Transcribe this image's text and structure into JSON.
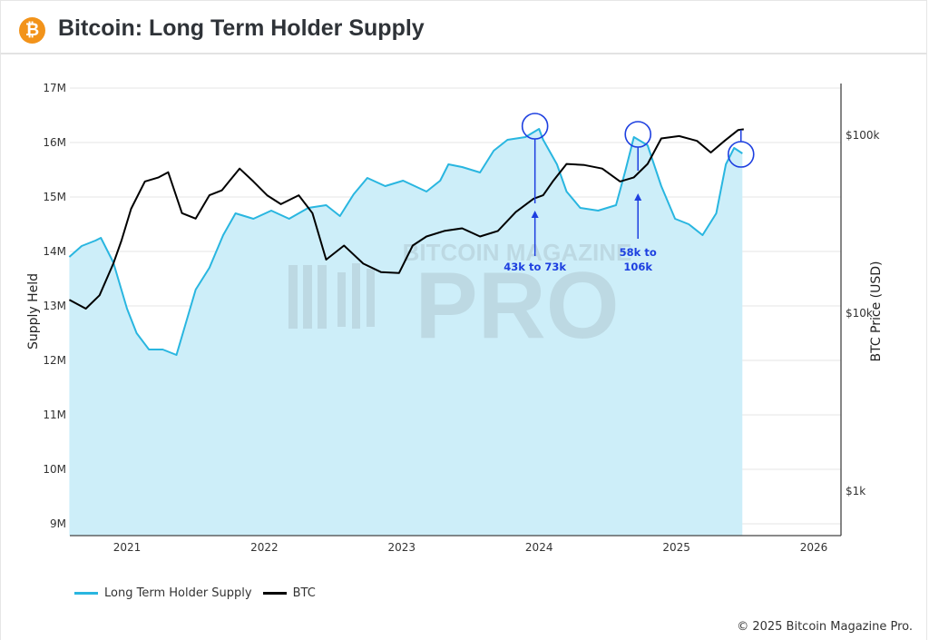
{
  "header": {
    "title": "Bitcoin: Long Term Holder Supply",
    "logo_icon": "bitcoin-icon",
    "logo_glyph": "₿"
  },
  "watermark": {
    "top": "BITCOIN MAGAZINE",
    "main": "PRO"
  },
  "legend": {
    "items": [
      {
        "label": "Long Term Holder Supply",
        "color": "#29b6e0"
      },
      {
        "label": "BTC",
        "color": "#000000"
      }
    ]
  },
  "footer": {
    "copyright": "© 2025 Bitcoin Magazine Pro."
  },
  "chart_data": {
    "type": "line",
    "title": "Bitcoin: Long Term Holder Supply",
    "ylabel": "Supply Held",
    "y2label": "BTC Price (USD)",
    "xlabel": "",
    "x_ticks": [
      "2021",
      "2022",
      "2023",
      "2024",
      "2025",
      "2026"
    ],
    "y_ticks": [
      "9M",
      "10M",
      "11M",
      "12M",
      "13M",
      "14M",
      "15M",
      "16M",
      "17M"
    ],
    "y2_ticks": [
      "$1k",
      "$10k",
      "$100k"
    ],
    "ylim": [
      8.8,
      17
    ],
    "y2_scale": "log",
    "y2lim": [
      400,
      160000
    ],
    "xlim": [
      2020.58,
      2026.2
    ],
    "grid": true,
    "legend_position": "bottom-left",
    "series": [
      {
        "name": "Long Term Holder Supply",
        "axis": "left",
        "color": "#29b6e0",
        "fill": "#cdeef9",
        "x": [
          2020.58,
          2020.67,
          2020.77,
          2020.81,
          2020.9,
          2021.0,
          2021.07,
          2021.16,
          2021.26,
          2021.36,
          2021.43,
          2021.5,
          2021.6,
          2021.7,
          2021.79,
          2021.92,
          2022.05,
          2022.18,
          2022.32,
          2022.45,
          2022.55,
          2022.65,
          2022.75,
          2022.88,
          2023.01,
          2023.18,
          2023.28,
          2023.34,
          2023.44,
          2023.57,
          2023.67,
          2023.77,
          2023.9,
          2024.0,
          2024.03,
          2024.13,
          2024.2,
          2024.3,
          2024.43,
          2024.56,
          2024.63,
          2024.69,
          2024.79,
          2024.89,
          2024.99,
          2025.09,
          2025.19,
          2025.29,
          2025.36,
          2025.42,
          2025.48
        ],
        "values": [
          13.9,
          14.1,
          14.2,
          14.25,
          13.8,
          12.95,
          12.5,
          12.2,
          12.2,
          12.1,
          12.7,
          13.3,
          13.7,
          14.3,
          14.7,
          14.6,
          14.75,
          14.6,
          14.8,
          14.85,
          14.65,
          15.05,
          15.35,
          15.2,
          15.3,
          15.1,
          15.3,
          15.6,
          15.55,
          15.45,
          15.85,
          16.05,
          16.1,
          16.25,
          16.05,
          15.6,
          15.1,
          14.8,
          14.75,
          14.85,
          15.5,
          16.1,
          15.95,
          15.2,
          14.6,
          14.5,
          14.3,
          14.7,
          15.6,
          15.9,
          15.8
        ]
      },
      {
        "name": "BTC",
        "axis": "right",
        "color": "#000000",
        "x": [
          2020.58,
          2020.7,
          2020.8,
          2020.9,
          2020.96,
          2021.03,
          2021.13,
          2021.23,
          2021.3,
          2021.4,
          2021.5,
          2021.6,
          2021.69,
          2021.82,
          2021.92,
          2022.02,
          2022.12,
          2022.25,
          2022.35,
          2022.45,
          2022.58,
          2022.72,
          2022.85,
          2022.98,
          2023.08,
          2023.18,
          2023.31,
          2023.44,
          2023.57,
          2023.7,
          2023.83,
          2023.96,
          2024.03,
          2024.1,
          2024.2,
          2024.33,
          2024.46,
          2024.59,
          2024.69,
          2024.79,
          2024.89,
          2025.02,
          2025.15,
          2025.25,
          2025.35,
          2025.45,
          2025.49
        ],
        "values": [
          11900,
          10600,
          12600,
          19000,
          25600,
          38600,
          55000,
          58000,
          62000,
          36500,
          34000,
          46000,
          49000,
          65000,
          55000,
          46000,
          41000,
          46000,
          36500,
          20000,
          24000,
          19000,
          17000,
          16800,
          24000,
          27000,
          29000,
          30000,
          27000,
          29000,
          37000,
          44000,
          46000,
          55000,
          69000,
          68000,
          65000,
          55000,
          58000,
          69000,
          96000,
          99000,
          93000,
          80000,
          93000,
          107000,
          108000
        ]
      }
    ],
    "annotations": [
      {
        "label_line1": "43k to 73k",
        "label_line2": "",
        "x": 2023.97
      },
      {
        "label_line1": "58k to",
        "label_line2": "106k",
        "x": 2024.72
      },
      {
        "label_line1": "",
        "label_line2": "",
        "x": 2025.47
      }
    ]
  }
}
